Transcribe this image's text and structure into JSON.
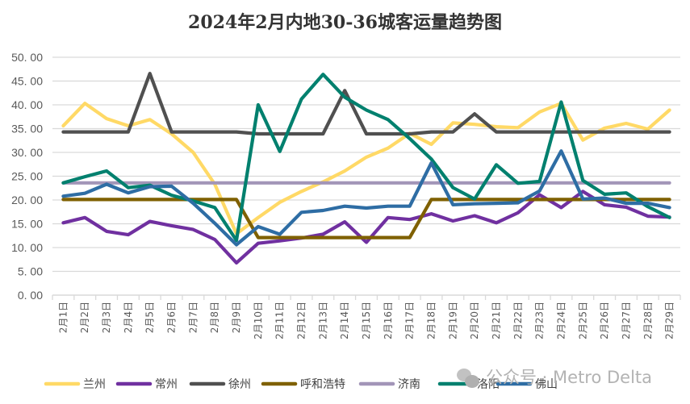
{
  "chart_data": {
    "type": "line",
    "title": "2024年2月内地30-36城客运量趋势图",
    "xlabel": "",
    "ylabel": "",
    "ylim": [
      0,
      50
    ],
    "yticks": [
      "0.00",
      "5.00",
      "10.00",
      "15.00",
      "20.00",
      "25.00",
      "30.00",
      "35.00",
      "40.00",
      "45.00",
      "50.00"
    ],
    "grid": true,
    "legend_position": "bottom",
    "categories": [
      "2月1日",
      "2月2日",
      "2月3日",
      "2月4日",
      "2月5日",
      "2月6日",
      "2月7日",
      "2月8日",
      "2月9日",
      "2月10日",
      "2月11日",
      "2月12日",
      "2月13日",
      "2月14日",
      "2月15日",
      "2月16日",
      "2月17日",
      "2月18日",
      "2月19日",
      "2月20日",
      "2月21日",
      "2月22日",
      "2月23日",
      "2月24日",
      "2月25日",
      "2月26日",
      "2月27日",
      "2月28日",
      "2月29日"
    ],
    "series": [
      {
        "name": "兰州",
        "color": "#FFD966",
        "values": [
          35.6,
          40.3,
          37.1,
          35.6,
          36.9,
          33.9,
          30.0,
          23.3,
          12.9,
          16.3,
          19.5,
          21.8,
          23.8,
          26.1,
          29.0,
          30.9,
          34.0,
          31.7,
          36.2,
          35.9,
          35.4,
          35.2,
          38.5,
          40.3,
          32.6,
          35.1,
          36.1,
          34.9,
          38.9
        ]
      },
      {
        "name": "常州",
        "color": "#7030A0",
        "values": [
          15.2,
          16.3,
          13.4,
          12.7,
          15.5,
          14.6,
          13.8,
          11.7,
          6.8,
          10.9,
          11.4,
          12.0,
          12.8,
          15.4,
          11.1,
          16.3,
          15.9,
          17.1,
          15.6,
          16.7,
          15.2,
          17.3,
          21.1,
          18.4,
          21.8,
          19.0,
          18.5,
          16.6,
          16.4
        ]
      },
      {
        "name": "徐州",
        "color": "#505050",
        "values": [
          34.3,
          34.3,
          34.3,
          34.3,
          46.6,
          34.3,
          34.3,
          34.3,
          34.3,
          33.9,
          33.9,
          33.9,
          33.9,
          43.0,
          33.9,
          33.9,
          33.9,
          34.3,
          34.3,
          38.1,
          34.3,
          34.3,
          34.3,
          34.3,
          34.3,
          34.3,
          34.3,
          34.3,
          34.3
        ]
      },
      {
        "name": "呼和浩特",
        "color": "#7F6000",
        "values": [
          20.1,
          20.1,
          20.1,
          20.1,
          20.1,
          20.1,
          20.1,
          20.1,
          20.1,
          12.1,
          12.1,
          12.1,
          12.1,
          12.1,
          12.1,
          12.1,
          12.1,
          20.1,
          20.1,
          20.1,
          20.1,
          20.1,
          20.1,
          20.1,
          20.1,
          20.1,
          20.1,
          20.1,
          20.1
        ]
      },
      {
        "name": "济南",
        "color": "#A295B8",
        "values": [
          23.6,
          23.6,
          23.6,
          23.6,
          23.6,
          23.6,
          23.6,
          23.6,
          23.6,
          23.6,
          23.6,
          23.6,
          23.6,
          23.6,
          23.6,
          23.6,
          23.6,
          23.6,
          23.6,
          23.6,
          23.6,
          23.6,
          23.6,
          23.6,
          23.6,
          23.6,
          23.6,
          23.6,
          23.6
        ]
      },
      {
        "name": "洛阳",
        "color": "#00806E",
        "values": [
          23.6,
          24.9,
          26.1,
          22.6,
          23.1,
          21.0,
          19.8,
          18.4,
          11.5,
          40.0,
          30.2,
          41.2,
          46.4,
          41.6,
          38.9,
          36.9,
          32.9,
          28.6,
          22.6,
          20.2,
          27.4,
          23.5,
          23.9,
          40.6,
          24.1,
          21.2,
          21.5,
          18.6,
          16.3
        ]
      },
      {
        "name": "佛山",
        "color": "#2E6DA4",
        "values": [
          20.8,
          21.4,
          23.3,
          21.5,
          22.8,
          22.9,
          19.3,
          15.1,
          10.6,
          14.4,
          12.8,
          17.4,
          17.8,
          18.7,
          18.3,
          18.7,
          18.7,
          27.8,
          19.0,
          19.2,
          19.3,
          19.4,
          21.9,
          30.3,
          20.2,
          20.4,
          19.3,
          19.3,
          18.4
        ]
      }
    ]
  },
  "watermark": {
    "text": "公众号 · Metro Delta",
    "icon": "wechat-icon"
  }
}
